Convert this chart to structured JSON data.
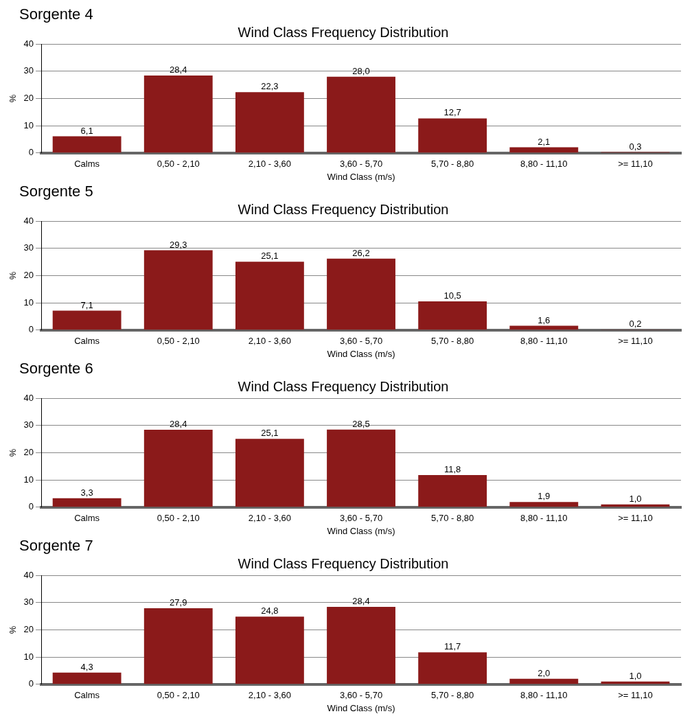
{
  "chart_data": [
    {
      "type": "bar",
      "annotations": [
        "Sorgente 4"
      ],
      "title": "Wind Class Frequency Distribution",
      "xlabel": "Wind Class (m/s)",
      "ylabel": "%",
      "categories": [
        "Calms",
        "0,50 - 2,10",
        "2,10 - 3,60",
        "3,60 - 5,70",
        "5,70 - 8,80",
        "8,80 - 11,10",
        ">= 11,10"
      ],
      "values": [
        6.1,
        28.4,
        22.3,
        28.0,
        12.7,
        2.1,
        0.3
      ],
      "value_labels": [
        "6,1",
        "28,4",
        "22,3",
        "28,0",
        "12,7",
        "2,1",
        "0,3"
      ],
      "color": "#8b1a1a",
      "ylim": [
        0,
        40
      ],
      "yticks": [
        0,
        10,
        20,
        30,
        40
      ],
      "grid": "y",
      "legend": false
    },
    {
      "type": "bar",
      "annotations": [
        "Sorgente 5"
      ],
      "title": "Wind Class Frequency Distribution",
      "xlabel": "Wind Class (m/s)",
      "ylabel": "%",
      "categories": [
        "Calms",
        "0,50 - 2,10",
        "2,10 - 3,60",
        "3,60 - 5,70",
        "5,70 - 8,80",
        "8,80 - 11,10",
        ">= 11,10"
      ],
      "values": [
        7.1,
        29.3,
        25.1,
        26.2,
        10.5,
        1.6,
        0.2
      ],
      "value_labels": [
        "7,1",
        "29,3",
        "25,1",
        "26,2",
        "10,5",
        "1,6",
        "0,2"
      ],
      "color": "#8b1a1a",
      "ylim": [
        0,
        40
      ],
      "yticks": [
        0,
        10,
        20,
        30,
        40
      ],
      "grid": "y",
      "legend": false
    },
    {
      "type": "bar",
      "annotations": [
        "Sorgente 6"
      ],
      "title": "Wind Class Frequency Distribution",
      "xlabel": "Wind Class (m/s)",
      "ylabel": "%",
      "categories": [
        "Calms",
        "0,50 - 2,10",
        "2,10 - 3,60",
        "3,60 - 5,70",
        "5,70 - 8,80",
        "8,80 - 11,10",
        ">= 11,10"
      ],
      "values": [
        3.3,
        28.4,
        25.1,
        28.5,
        11.8,
        1.9,
        1.0
      ],
      "value_labels": [
        "3,3",
        "28,4",
        "25,1",
        "28,5",
        "11,8",
        "1,9",
        "1,0"
      ],
      "color": "#8b1a1a",
      "ylim": [
        0,
        40
      ],
      "yticks": [
        0,
        10,
        20,
        30,
        40
      ],
      "grid": "y",
      "legend": false
    },
    {
      "type": "bar",
      "annotations": [
        "Sorgente 7"
      ],
      "title": "Wind Class Frequency Distribution",
      "xlabel": "Wind Class (m/s)",
      "ylabel": "%",
      "categories": [
        "Calms",
        "0,50 - 2,10",
        "2,10 - 3,60",
        "3,60 - 5,70",
        "5,70 - 8,80",
        "8,80 - 11,10",
        ">= 11,10"
      ],
      "values": [
        4.3,
        27.9,
        24.8,
        28.4,
        11.7,
        2.0,
        1.0
      ],
      "value_labels": [
        "4,3",
        "27,9",
        "24,8",
        "28,4",
        "11,7",
        "2,0",
        "1,0"
      ],
      "color": "#8b1a1a",
      "ylim": [
        0,
        40
      ],
      "yticks": [
        0,
        10,
        20,
        30,
        40
      ],
      "grid": "y",
      "legend": false
    }
  ]
}
